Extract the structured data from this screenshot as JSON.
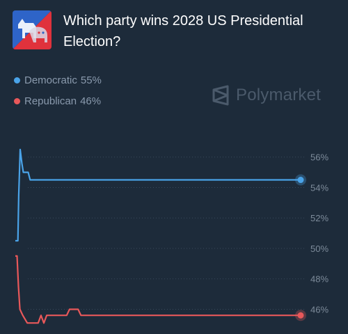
{
  "market": {
    "title": "Which party wins 2028 US Presidential Election?",
    "icon": "democrat-donkey-republican-elephant-icon",
    "icon_colors": [
      "#2e64c8",
      "#e0323c"
    ]
  },
  "brand": {
    "name": "Polymarket",
    "icon": "polymarket-logo-icon",
    "color": "#4b5a6b"
  },
  "legend": [
    {
      "name": "Democratic",
      "value": "55%",
      "color": "#4aa3e8"
    },
    {
      "name": "Republican",
      "value": "46%",
      "color": "#e8585a"
    }
  ],
  "chart_data": {
    "type": "line",
    "y_ticks": [
      "56%",
      "54%",
      "52%",
      "50%",
      "48%",
      "46%"
    ],
    "ylim": [
      45.2,
      56.9
    ],
    "xlim": [
      0,
      100
    ],
    "grid": "dotted horizontal",
    "series": [
      {
        "name": "Democratic",
        "color": "#4aa3e8",
        "points": [
          [
            0,
            50.5
          ],
          [
            0.9,
            50.5
          ],
          [
            1.2,
            53.5
          ],
          [
            1.7,
            56.5
          ],
          [
            2.3,
            55.6
          ],
          [
            2.8,
            55
          ],
          [
            4.5,
            55
          ],
          [
            5.2,
            54.5
          ],
          [
            100,
            54.5
          ]
        ],
        "last": 54.5
      },
      {
        "name": "Republican",
        "color": "#e8585a",
        "points": [
          [
            0,
            49.5
          ],
          [
            0.6,
            49.5
          ],
          [
            1.1,
            47.5
          ],
          [
            1.6,
            46.0
          ],
          [
            2.6,
            45.6
          ],
          [
            4.2,
            45.1
          ],
          [
            8,
            45.1
          ],
          [
            9,
            45.6
          ],
          [
            10,
            45.1
          ],
          [
            11,
            45.6
          ],
          [
            18,
            45.6
          ],
          [
            19,
            46.0
          ],
          [
            22,
            46.0
          ],
          [
            23,
            45.6
          ],
          [
            100,
            45.6
          ]
        ],
        "last": 45.6
      }
    ]
  }
}
